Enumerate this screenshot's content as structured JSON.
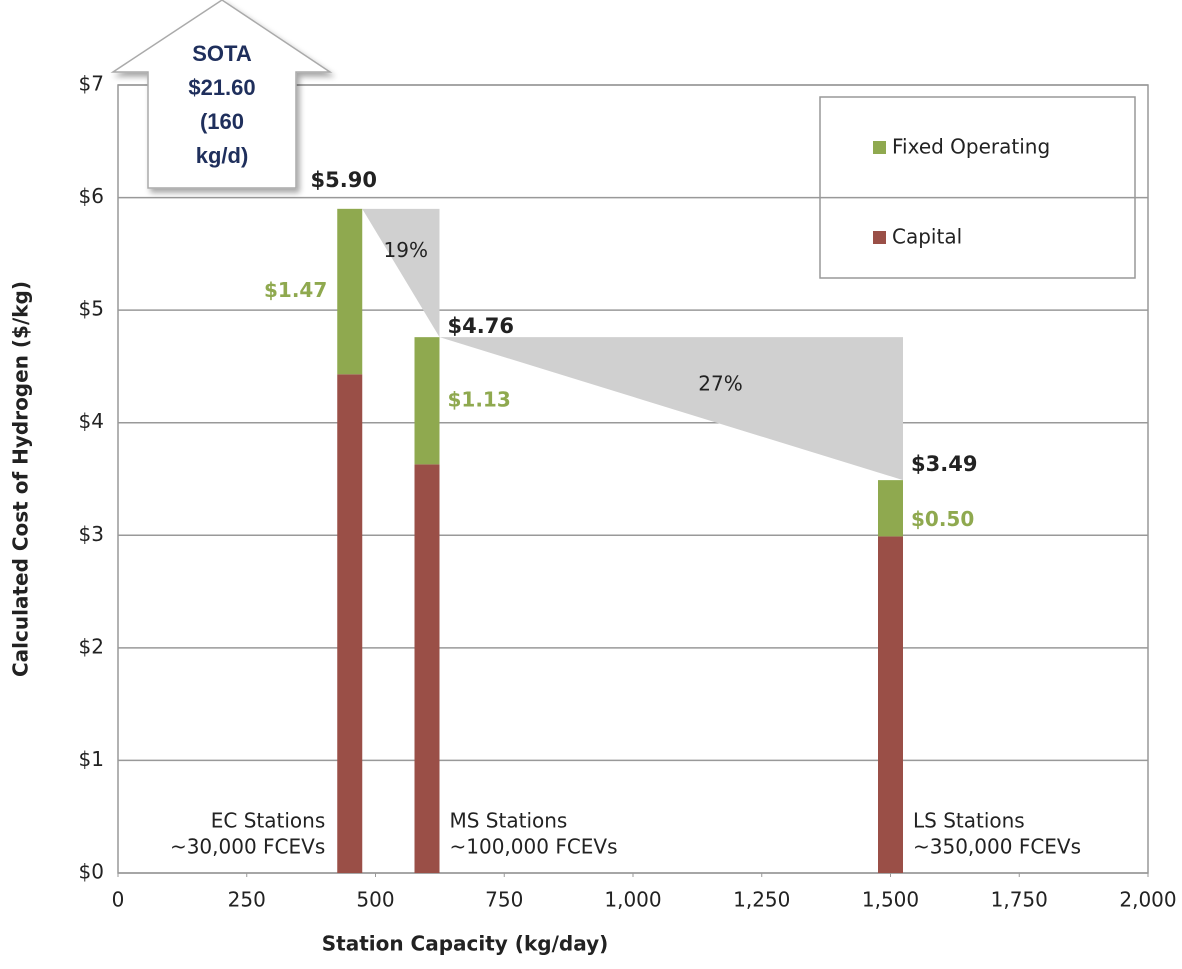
{
  "chart_data": {
    "type": "stacked_bar",
    "x_label": "Station Capacity (kg/day)",
    "y_label": "Calculated Cost of Hydrogen ($/kg)",
    "x": [
      450,
      600,
      1500
    ],
    "category_labels": [
      [
        "EC Stations",
        "~30,000 FCEVs"
      ],
      [
        "MS Stations",
        "~100,000 FCEVs"
      ],
      [
        "LS Stations",
        "~350,000 FCEVs"
      ]
    ],
    "series": [
      {
        "name": "Capital",
        "color": "#9a4f47",
        "values": [
          4.43,
          3.63,
          2.99
        ]
      },
      {
        "name": "Fixed Operating",
        "color": "#8fa94f",
        "values": [
          1.47,
          1.13,
          0.5
        ],
        "value_labels": [
          "$1.47",
          "$1.13",
          "$0.50"
        ]
      }
    ],
    "totals": [
      5.9,
      4.76,
      3.49
    ],
    "total_labels": [
      "$5.90",
      "$4.76",
      "$3.49"
    ],
    "reductions": [
      "19%",
      "27%"
    ],
    "callout": [
      "SOTA",
      "$21.60",
      "(160",
      "kg/d)"
    ],
    "xlim": [
      0,
      2000
    ],
    "xticks": [
      0,
      250,
      500,
      750,
      {
        "value": 1000,
        "label": "1,000"
      },
      {
        "value": 1250,
        "label": "1,250"
      },
      {
        "value": 1500,
        "label": "1,500"
      },
      {
        "value": 1750,
        "label": "1,750"
      },
      {
        "value": 2000,
        "label": "2,000"
      }
    ],
    "ylim": [
      0,
      7
    ],
    "yticks": [
      {
        "value": 0,
        "label": "$0"
      },
      {
        "value": 1,
        "label": "$1"
      },
      {
        "value": 2,
        "label": "$2"
      },
      {
        "value": 3,
        "label": "$3"
      },
      {
        "value": 4,
        "label": "$4"
      },
      {
        "value": 5,
        "label": "$5"
      },
      {
        "value": 6,
        "label": "$6"
      },
      {
        "value": 7,
        "label": "$7"
      }
    ],
    "grid": true,
    "legend": "upper right"
  }
}
